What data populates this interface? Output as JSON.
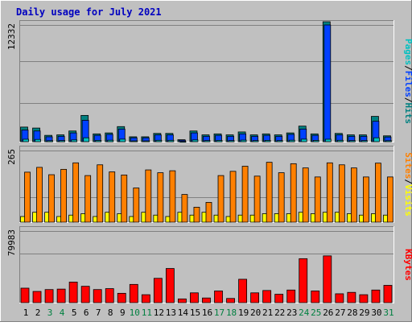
{
  "colors": {
    "frame_bg": "#c0c0c0",
    "plot_bg": "#c0c0c0",
    "grid": "#808080",
    "title": "#0000c0",
    "pages": "#00c0c0",
    "files": "#0040ff",
    "hits": "#008080",
    "visits": "#ffff00",
    "sites": "#ff8000",
    "kbytes": "#ff0000",
    "weekday_label": "#000000",
    "weekend_label": "#008040"
  },
  "chart_data": [
    {
      "type": "bar",
      "title": "Daily usage for July 2021",
      "ylabel": "Pages / Files / Hits",
      "ymax_label": "12332",
      "ylim": [
        0,
        12332
      ],
      "categories": [
        "1",
        "2",
        "3",
        "4",
        "5",
        "6",
        "7",
        "8",
        "9",
        "10",
        "11",
        "12",
        "13",
        "14",
        "15",
        "16",
        "17",
        "18",
        "19",
        "20",
        "21",
        "22",
        "23",
        "24",
        "25",
        "26",
        "27",
        "28",
        "29",
        "30",
        "31"
      ],
      "weekend_days": [
        "3",
        "4",
        "10",
        "11",
        "17",
        "18",
        "24",
        "25",
        "31"
      ],
      "series": [
        {
          "name": "Hits",
          "values": [
            1500,
            1400,
            650,
            700,
            1100,
            2700,
            800,
            900,
            1550,
            500,
            500,
            850,
            850,
            200,
            1100,
            700,
            800,
            700,
            1000,
            700,
            800,
            700,
            900,
            1600,
            800,
            12332,
            850,
            700,
            700,
            2600,
            600
          ]
        },
        {
          "name": "Files",
          "values": [
            1200,
            1100,
            500,
            550,
            900,
            2200,
            650,
            750,
            1300,
            400,
            400,
            700,
            700,
            150,
            900,
            550,
            650,
            550,
            800,
            550,
            650,
            550,
            750,
            1300,
            650,
            12000,
            700,
            550,
            550,
            2100,
            480
          ]
        },
        {
          "name": "Pages",
          "values": [
            250,
            230,
            100,
            110,
            180,
            400,
            130,
            150,
            260,
            80,
            80,
            140,
            140,
            30,
            180,
            110,
            130,
            110,
            160,
            110,
            130,
            110,
            150,
            260,
            130,
            250,
            140,
            110,
            110,
            400,
            100
          ]
        }
      ]
    },
    {
      "type": "bar",
      "ylabel": "Sites / Visits",
      "ymax_label": "265",
      "ylim": [
        0,
        265
      ],
      "categories": [
        "1",
        "2",
        "3",
        "4",
        "5",
        "6",
        "7",
        "8",
        "9",
        "10",
        "11",
        "12",
        "13",
        "14",
        "15",
        "16",
        "17",
        "18",
        "19",
        "20",
        "21",
        "22",
        "23",
        "24",
        "25",
        "26",
        "27",
        "28",
        "29",
        "30",
        "31"
      ],
      "series": [
        {
          "name": "Sites",
          "values": [
            177,
            194,
            168,
            187,
            210,
            165,
            203,
            178,
            167,
            121,
            185,
            175,
            182,
            98,
            53,
            70,
            165,
            180,
            198,
            163,
            212,
            175,
            207,
            192,
            160,
            210,
            203,
            192,
            160,
            209,
            160
          ]
        },
        {
          "name": "Visits",
          "values": [
            20,
            35,
            35,
            20,
            25,
            30,
            20,
            35,
            30,
            20,
            35,
            25,
            20,
            35,
            25,
            35,
            25,
            20,
            25,
            25,
            30,
            30,
            30,
            35,
            30,
            35,
            35,
            30,
            25,
            30,
            25
          ]
        }
      ]
    },
    {
      "type": "bar",
      "ylabel": "KBytes",
      "ymax_label": "79983",
      "ylim": [
        0,
        79983
      ],
      "categories": [
        "1",
        "2",
        "3",
        "4",
        "5",
        "6",
        "7",
        "8",
        "9",
        "10",
        "11",
        "12",
        "13",
        "14",
        "15",
        "16",
        "17",
        "18",
        "19",
        "20",
        "21",
        "22",
        "23",
        "24",
        "25",
        "26",
        "27",
        "28",
        "29",
        "30",
        "31"
      ],
      "series": [
        {
          "name": "KBytes",
          "values": [
            15500,
            12000,
            14000,
            14500,
            22000,
            17500,
            14000,
            15000,
            10000,
            19500,
            8500,
            26000,
            36500,
            4000,
            10500,
            5000,
            12500,
            4500,
            25000,
            10500,
            13000,
            9000,
            13500,
            47000,
            12500,
            50000,
            9500,
            11000,
            8500,
            13500,
            18500
          ]
        }
      ]
    }
  ]
}
